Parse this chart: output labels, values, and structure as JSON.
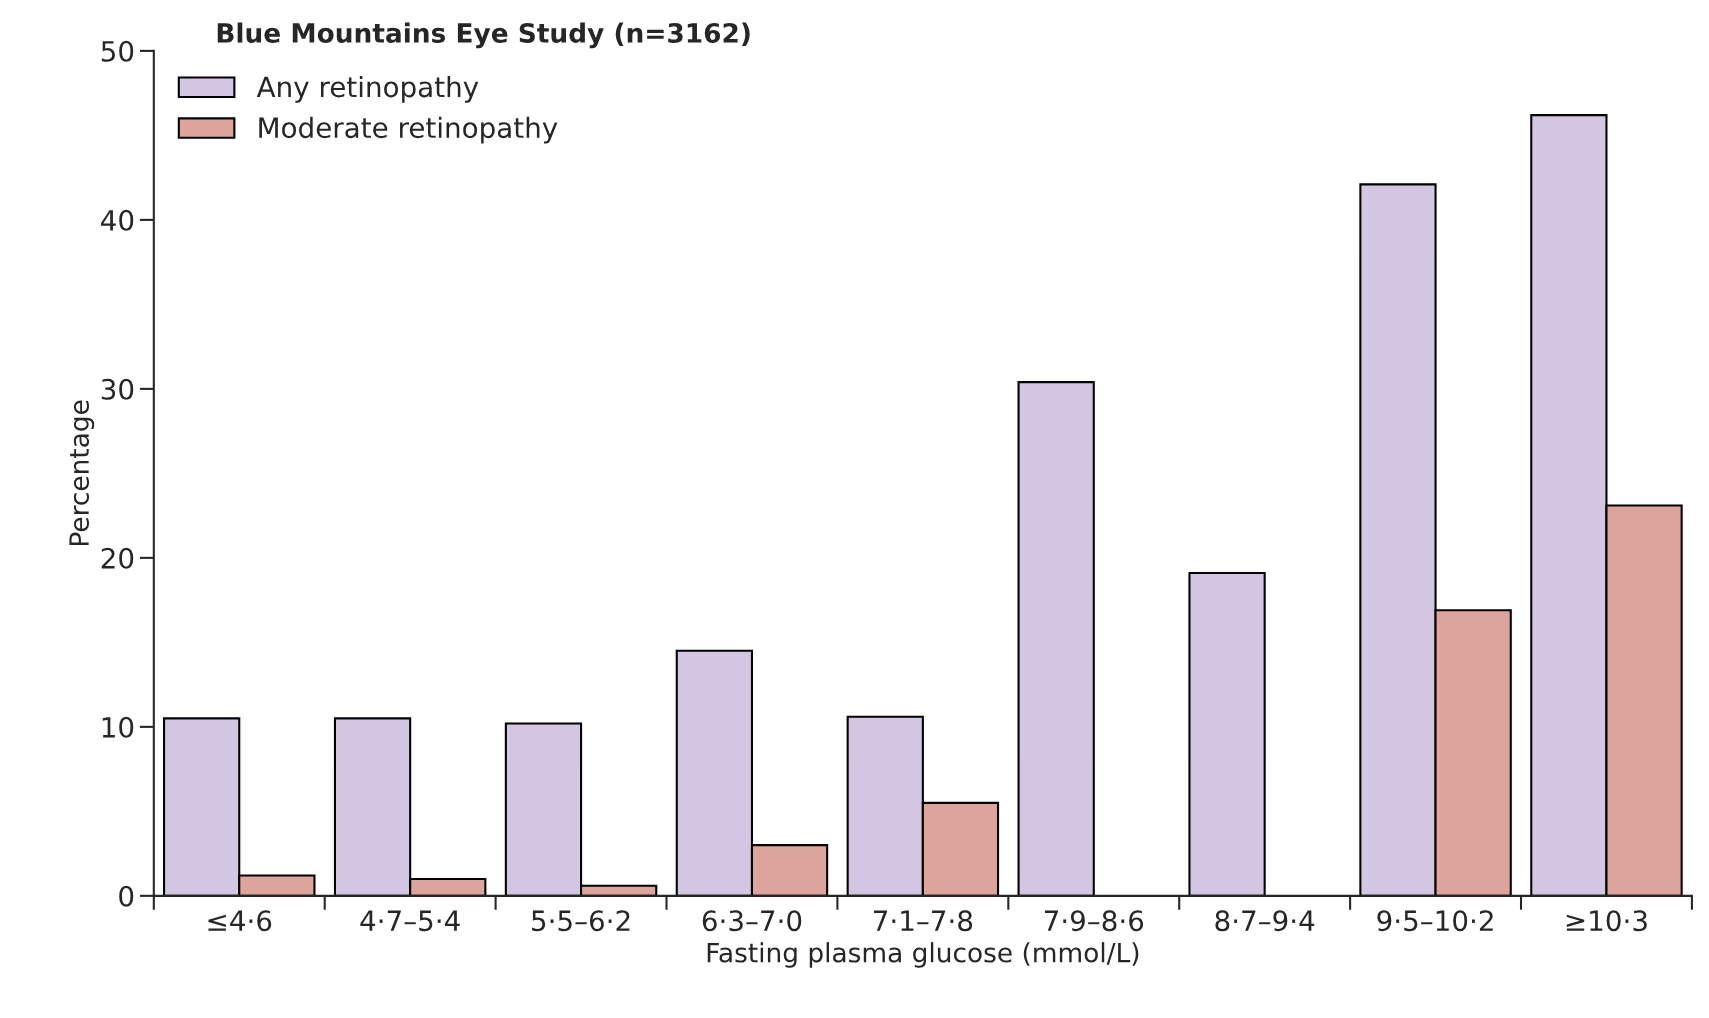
{
  "chart_data": {
    "type": "bar",
    "title": "Blue Mountains Eye Study (n=3162)",
    "xlabel": "Fasting plasma glucose (mmol/L)",
    "ylabel": "Percentage",
    "categories": [
      "≤4·6",
      "4·7–5·4",
      "5·5–6·2",
      "6·3–7·0",
      "7·1–7·8",
      "7·9–8·6",
      "8·7–9·4",
      "9·5–10·2",
      "≥10·3"
    ],
    "series": [
      {
        "name": "Any retinopathy",
        "color": "#d2c6e2",
        "values": [
          10.5,
          10.5,
          10.2,
          14.5,
          10.6,
          30.4,
          19.1,
          42.1,
          46.2
        ]
      },
      {
        "name": "Moderate retinopathy",
        "color": "#dda49c",
        "values": [
          1.2,
          1.0,
          0.6,
          3.0,
          5.5,
          null,
          null,
          16.9,
          23.1
        ]
      }
    ],
    "ylim": [
      0,
      50
    ],
    "yticks": [
      0,
      10,
      20,
      30,
      40,
      50
    ],
    "grid": false,
    "legend": "top left"
  }
}
